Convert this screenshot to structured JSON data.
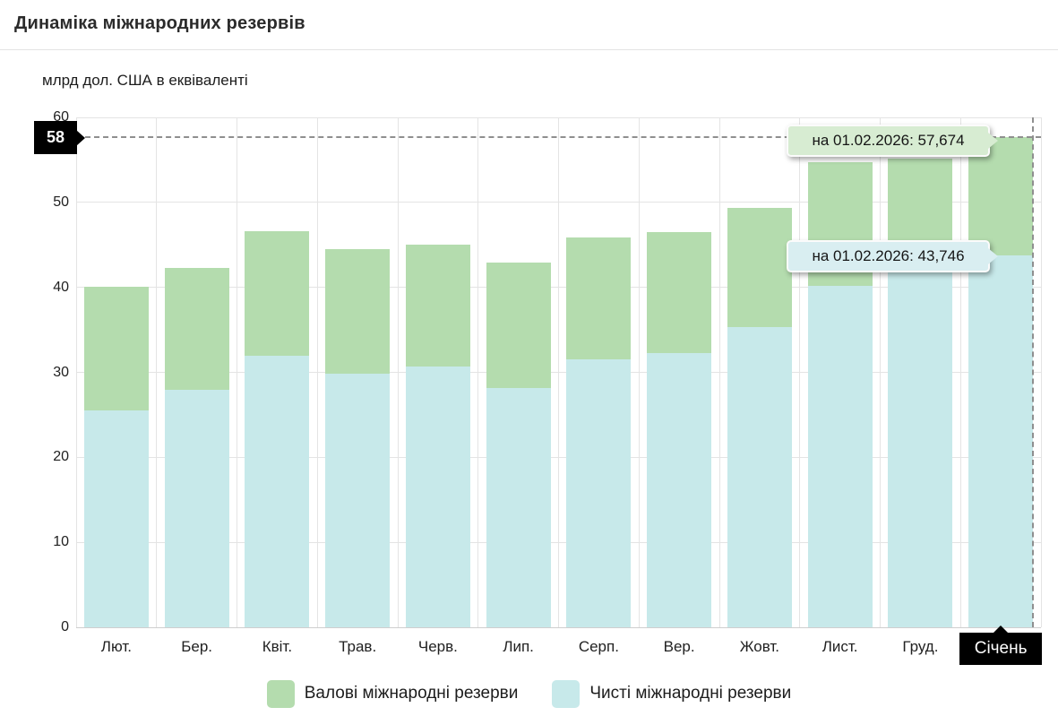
{
  "header": {
    "title": "Динаміка міжнародних резервів"
  },
  "chart": {
    "units_label": "млрд дол. США в еквіваленті",
    "y_ticks": [
      0,
      10,
      20,
      30,
      40,
      50,
      60
    ],
    "y_axis_marker": "58",
    "highlight_category": "Січень",
    "tooltip_gross": "на 01.02.2026: 57,674",
    "tooltip_net": "на 01.02.2026: 43,746",
    "colors": {
      "gross_bar": "#b4dcae",
      "net_bar": "#c7e9ea",
      "gross_tooltip_bg": "#d7ecd2",
      "net_tooltip_bg": "#d9eef1",
      "marker_bg": "#000000",
      "marker_text": "#ffffff",
      "gridline": "#e4e4e4",
      "dashed_line": "#8f8f8f",
      "text": "#212121"
    }
  },
  "chart_data": {
    "type": "bar",
    "title": "Динаміка міжнародних резервів",
    "ylabel": "млрд дол. США в еквіваленті",
    "categories": [
      "Лют.",
      "Бер.",
      "Квіт.",
      "Трав.",
      "Черв.",
      "Лип.",
      "Серп.",
      "Вер.",
      "Жовт.",
      "Лист.",
      "Груд.",
      "Січень"
    ],
    "series": [
      {
        "name": "Валові міжнародні резерви",
        "color": "#b4dcae",
        "values": [
          40.1,
          42.3,
          46.6,
          44.5,
          45.0,
          42.9,
          45.9,
          46.5,
          49.4,
          54.7,
          55.1,
          57.674
        ]
      },
      {
        "name": "Чисті міжнародні резерви",
        "color": "#c7e9ea",
        "values": [
          25.5,
          27.9,
          32.0,
          29.8,
          30.7,
          28.2,
          31.5,
          32.3,
          35.3,
          40.2,
          42.5,
          43.746
        ]
      }
    ],
    "ylim": [
      0,
      60
    ],
    "y_tick_step": 10,
    "grid": true,
    "bar_style": "overlaid",
    "legend_position": "bottom",
    "annotations": [
      {
        "series": "Валові міжнародні резерви",
        "label": "на 01.02.2026: 57,674",
        "value": 57.674
      },
      {
        "series": "Чисті міжнародні резерви",
        "label": "на 01.02.2026: 43,746",
        "value": 43.746
      }
    ],
    "y_axis_marker": {
      "label": "58",
      "value": 57.674
    },
    "x_axis_marker": {
      "label": "Січень"
    }
  },
  "legend": {
    "items": [
      {
        "label": "Валові міжнародні резерви",
        "color": "#b4dcae"
      },
      {
        "label": "Чисті міжнародні резерви",
        "color": "#c7e9ea"
      }
    ]
  }
}
